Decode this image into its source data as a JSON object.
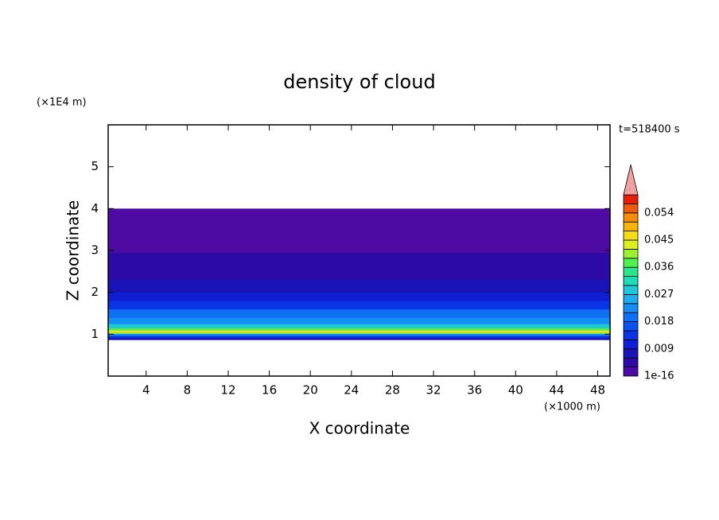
{
  "chart_data": {
    "type": "contour",
    "title": "density of cloud",
    "x_label": "X coordinate",
    "y_label": "Z coordinate",
    "x_unit": "(×1000 m)",
    "y_unit": "(×1E4 m)",
    "time_label": "t=518400 s",
    "xlim": [
      0.3,
      49.2
    ],
    "ylim": [
      0,
      6
    ],
    "xticks": [
      4,
      8,
      12,
      16,
      20,
      24,
      28,
      32,
      36,
      40,
      44,
      48
    ],
    "yticks": [
      1,
      2,
      3,
      4,
      5
    ],
    "field": {
      "z_edges": [
        0.87,
        0.92,
        0.97,
        1.02,
        1.06,
        1.1,
        1.15,
        1.25,
        1.4,
        1.6,
        1.8,
        2.0,
        2.3,
        2.6,
        2.95,
        4.0
      ],
      "density": [
        0.006,
        0.012,
        0.022,
        0.04,
        0.046,
        0.036,
        0.027,
        0.022,
        0.018,
        0.014,
        0.011,
        0.008,
        0.005,
        0.003,
        0.001
      ]
    },
    "colorbar": {
      "levels": [
        1e-16,
        0.003,
        0.006,
        0.009,
        0.012,
        0.015,
        0.018,
        0.021,
        0.024,
        0.027,
        0.03,
        0.033,
        0.036,
        0.039,
        0.042,
        0.045,
        0.048,
        0.051,
        0.054,
        0.057,
        0.06
      ],
      "ticks": [
        1e-16,
        0.009,
        0.018,
        0.027,
        0.036,
        0.045,
        0.054
      ],
      "colors": [
        "#4e0ba3",
        "#2c0aa6",
        "#1a14b8",
        "#0f1ed2",
        "#0a34e6",
        "#0a52f0",
        "#0f70f5",
        "#148ef5",
        "#1eacf0",
        "#1ec8d6",
        "#1edcb4",
        "#28e68c",
        "#50f050",
        "#a0f032",
        "#dcf01e",
        "#f5dc14",
        "#f5b40f",
        "#f58c0a",
        "#f05a0a",
        "#e61e0a"
      ],
      "over_color": "#f0a0a0"
    }
  }
}
